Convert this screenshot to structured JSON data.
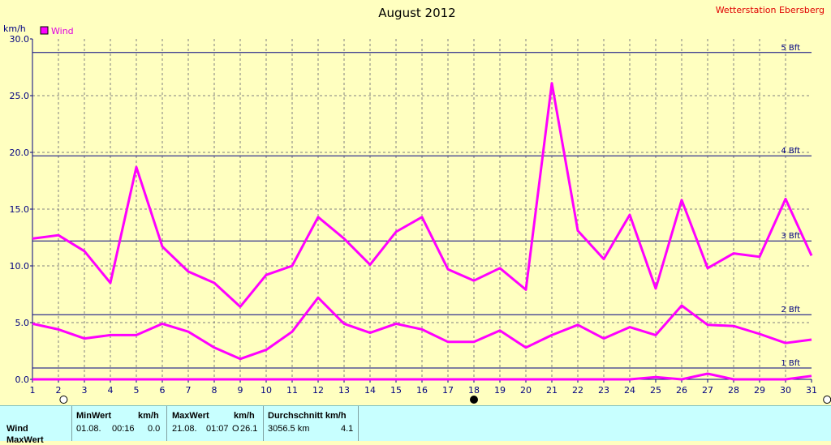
{
  "header": {
    "title": "August 2012",
    "station": "Wetterstation Ebersberg",
    "unit": "km/h"
  },
  "chart_data": {
    "type": "line",
    "title": "August 2012",
    "ylabel": "km/h",
    "xlim": [
      1,
      31
    ],
    "ylim": [
      0,
      30
    ],
    "x": [
      1,
      2,
      3,
      4,
      5,
      6,
      7,
      8,
      9,
      10,
      11,
      12,
      13,
      14,
      15,
      16,
      17,
      18,
      19,
      20,
      21,
      22,
      23,
      24,
      25,
      26,
      27,
      28,
      29,
      30,
      31
    ],
    "x_ticks": [
      1,
      2,
      3,
      4,
      5,
      6,
      7,
      8,
      9,
      10,
      11,
      12,
      13,
      14,
      15,
      16,
      17,
      18,
      19,
      20,
      21,
      22,
      23,
      24,
      25,
      26,
      27,
      28,
      29,
      30,
      31
    ],
    "y_ticks": [
      "0.0",
      "5.0",
      "10.0",
      "15.0",
      "20.0",
      "25.0",
      "30.0"
    ],
    "y_tick_values": [
      0,
      5,
      10,
      15,
      20,
      25,
      30
    ],
    "grid": true,
    "legend": {
      "position": "top-left",
      "entries": [
        "Wind"
      ]
    },
    "series": [
      {
        "name": "Wind",
        "role": "max",
        "color": "#ff00ff",
        "values": [
          12.4,
          12.7,
          11.3,
          8.5,
          18.7,
          11.7,
          9.5,
          8.5,
          6.4,
          9.2,
          10.0,
          14.3,
          12.4,
          10.1,
          13.0,
          14.3,
          9.7,
          8.7,
          9.8,
          7.9,
          26.1,
          13.1,
          10.6,
          14.5,
          8.0,
          15.8,
          9.8,
          11.1,
          10.8,
          15.9,
          10.9
        ]
      },
      {
        "name": "Wind",
        "role": "average",
        "color": "#ff00ff",
        "values": [
          4.9,
          4.4,
          3.6,
          3.9,
          3.9,
          4.9,
          4.2,
          2.8,
          1.8,
          2.6,
          4.2,
          7.2,
          4.9,
          4.1,
          4.9,
          4.4,
          3.3,
          3.3,
          4.3,
          2.8,
          3.9,
          4.8,
          3.6,
          4.6,
          3.9,
          6.5,
          4.8,
          4.7,
          4.0,
          3.2,
          3.5
        ]
      },
      {
        "name": "Wind",
        "role": "min",
        "color": "#ff00ff",
        "values": [
          0.0,
          0.0,
          0.0,
          0.0,
          0.0,
          0.0,
          0.0,
          0.0,
          0.0,
          0.0,
          0.0,
          0.0,
          0.0,
          0.0,
          0.0,
          0.0,
          0.0,
          0.0,
          0.0,
          0.0,
          0.0,
          0.0,
          0.0,
          0.0,
          0.2,
          0.0,
          0.5,
          0.0,
          0.0,
          0.0,
          0.3
        ]
      }
    ],
    "reference_lines": [
      {
        "label": "1 Bft",
        "value": 1.0
      },
      {
        "label": "2 Bft",
        "value": 5.7
      },
      {
        "label": "3 Bft",
        "value": 12.2
      },
      {
        "label": "4 Bft",
        "value": 19.7
      },
      {
        "label": "5 Bft",
        "value": 28.8
      }
    ],
    "markers": [
      {
        "kind": "open-circle",
        "x": 2.2
      },
      {
        "kind": "filled-circle",
        "x": 18
      },
      {
        "kind": "open-circle",
        "x": 31.6
      }
    ],
    "colors": {
      "line": "#ff00ff",
      "axis": "#000080",
      "grid": "#808080",
      "background": "#ffffc0",
      "station": "#e00000"
    }
  },
  "stats": {
    "row_label": "Wind",
    "row2_label": "MaxWert",
    "min": {
      "header": "MinWert",
      "unit": "km/h",
      "date": "01.08.",
      "time": "00:16",
      "value": "0.0"
    },
    "max": {
      "header": "MaxWert",
      "unit": "km/h",
      "date": "21.08.",
      "time": "01:07",
      "direction": "O",
      "value": "26.1"
    },
    "avg": {
      "header": "Durchschnitt km/h",
      "distance": "3056.5 km",
      "value": "4.1"
    }
  }
}
